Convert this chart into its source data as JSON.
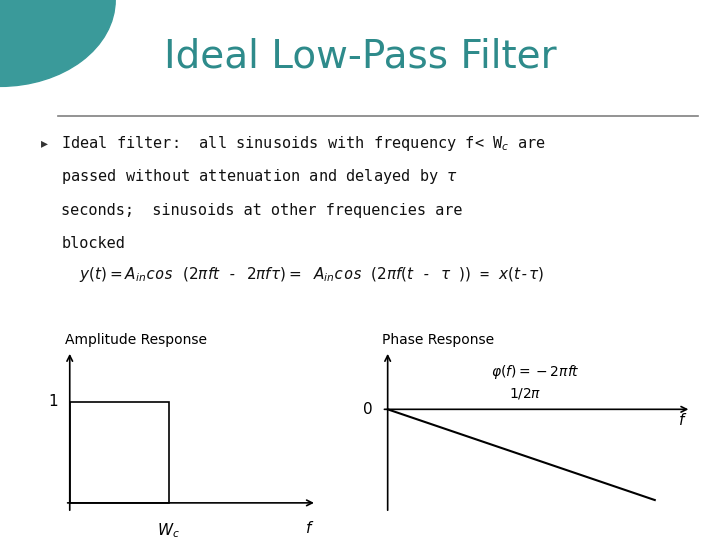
{
  "title": "Ideal Low-Pass Filter",
  "title_color": "#2E8B8B",
  "title_fontsize": 28,
  "background_color": "#FFFFFF",
  "amp_label": "Amplitude Response",
  "phase_label": "Phase Response",
  "teal_circle_color": "#3A9A9A"
}
